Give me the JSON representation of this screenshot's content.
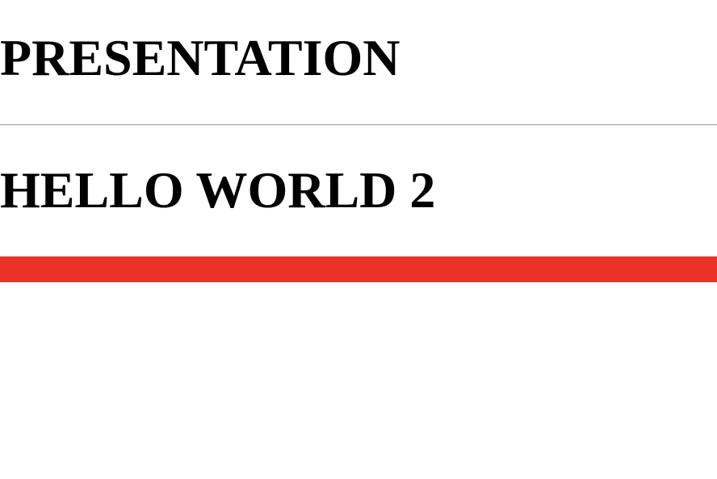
{
  "header": {
    "title": "PRESENTATION"
  },
  "slide": {
    "heading": "HELLO WORLD 2"
  },
  "colors": {
    "accent_bar": "#e8322a",
    "divider": "#a8a8a8",
    "text": "#000000",
    "background": "#ffffff"
  }
}
